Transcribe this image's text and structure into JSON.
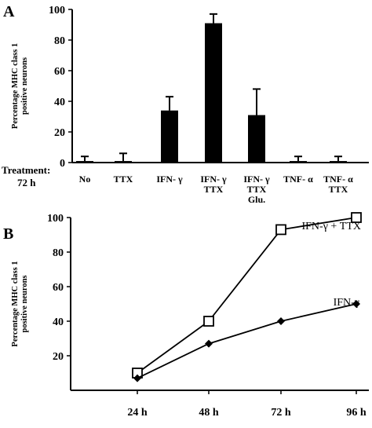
{
  "panels": {
    "a": {
      "letter": "A"
    },
    "b": {
      "letter": "B"
    }
  },
  "treatment": {
    "label": "Treatment:",
    "duration": "72 h"
  },
  "chart_data": [
    {
      "type": "bar",
      "panel": "A",
      "ylabel": [
        "Percentage MHC class 1",
        "positive neurons"
      ],
      "ylim": [
        0,
        100
      ],
      "yticks": [
        "0",
        "20",
        "40",
        "60",
        "80",
        "100"
      ],
      "categories": [
        [
          "No"
        ],
        [
          "TTX"
        ],
        [
          "IFN- γ"
        ],
        [
          "IFN- γ",
          "TTX"
        ],
        [
          "IFN- γ",
          "TTX",
          "Glu."
        ],
        [
          "TNF- α"
        ],
        [
          "TNF- α",
          "TTX"
        ]
      ],
      "values": [
        1,
        1,
        34,
        91,
        31,
        1,
        1
      ],
      "errors": [
        3,
        5,
        9,
        6,
        17,
        3,
        3
      ],
      "color": "#000000",
      "grid": false
    },
    {
      "type": "line",
      "panel": "B",
      "ylabel": [
        "Percentage MHC class 1",
        "positive neurons"
      ],
      "ylim": [
        0,
        100
      ],
      "yticks": [
        "20",
        "40",
        "60",
        "80",
        "100"
      ],
      "x": [
        "24 h",
        "48 h",
        "72 h",
        "96 h"
      ],
      "series": [
        {
          "name": "IFN-γ + TTX",
          "marker": "open-square",
          "values": [
            10,
            40,
            93,
            100
          ]
        },
        {
          "name": "IFN-γ",
          "marker": "filled-diamond",
          "values": [
            7,
            27,
            40,
            50
          ]
        }
      ],
      "grid": false
    }
  ]
}
